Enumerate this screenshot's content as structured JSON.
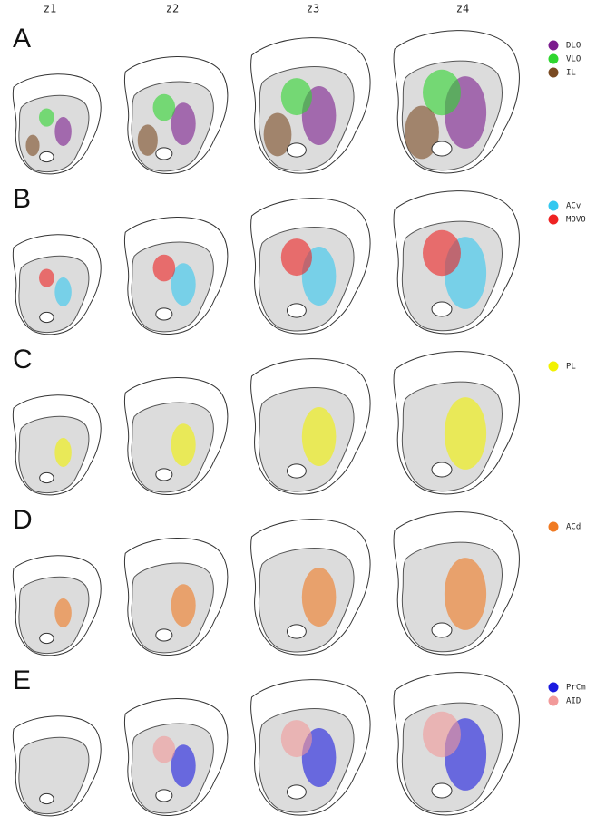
{
  "columns": [
    "z1",
    "z2",
    "z3",
    "z4"
  ],
  "panels": [
    {
      "label": "A",
      "legend": [
        {
          "name": "DLO",
          "color": "#7b1c8e"
        },
        {
          "name": "VLO",
          "color": "#2fd62f"
        },
        {
          "name": "IL",
          "color": "#7a4a22"
        }
      ]
    },
    {
      "label": "B",
      "legend": [
        {
          "name": "ACv",
          "color": "#33c8f0"
        },
        {
          "name": "MOVO",
          "color": "#ee2222"
        }
      ]
    },
    {
      "label": "C",
      "legend": [
        {
          "name": "PL",
          "color": "#f2f200"
        }
      ]
    },
    {
      "label": "D",
      "legend": [
        {
          "name": "ACd",
          "color": "#f07a22"
        }
      ]
    },
    {
      "label": "E",
      "legend": [
        {
          "name": "PrCm",
          "color": "#1a1ae0"
        },
        {
          "name": "AID",
          "color": "#f29a9a"
        }
      ]
    }
  ]
}
